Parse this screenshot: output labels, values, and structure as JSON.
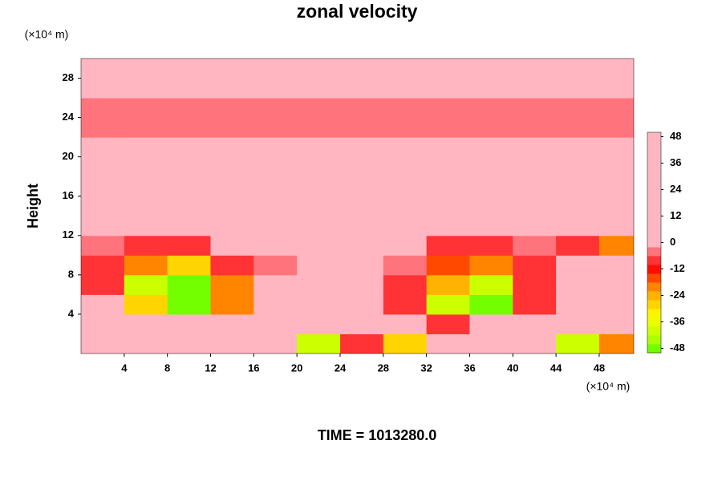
{
  "chart_data": {
    "type": "heatmap",
    "title": "zonal velocity",
    "subtitle": "TIME = 1013280.0",
    "y_label": "Height",
    "y_unit": "(×10⁴ m)",
    "x_unit": "(×10⁴ m)",
    "x": [
      2,
      6,
      10,
      14,
      18,
      22,
      26,
      30,
      34,
      38,
      42,
      46,
      50
    ],
    "y": [
      1,
      3,
      5,
      7,
      9,
      11,
      13,
      15,
      17,
      19,
      21,
      23,
      25,
      27,
      29
    ],
    "z": [
      [
        10,
        30,
        48,
        20,
        0,
        -40,
        -10,
        -30,
        20,
        48,
        10,
        -40,
        -20
      ],
      [
        20,
        30,
        30,
        10,
        0,
        15,
        10,
        0,
        -10,
        10,
        0,
        20,
        30
      ],
      [
        0,
        -30,
        -48,
        -20,
        0,
        10,
        0,
        -10,
        -40,
        -48,
        -10,
        48,
        48
      ],
      [
        -10,
        -40,
        -48,
        -20,
        0,
        0,
        0,
        -10,
        -24,
        -40,
        -10,
        48,
        40
      ],
      [
        -10,
        -20,
        -30,
        -10,
        -5,
        0,
        0,
        -5,
        -15,
        -20,
        -10,
        30,
        20
      ],
      [
        -5,
        -10,
        -10,
        0,
        0,
        0,
        0,
        0,
        -10,
        -10,
        -5,
        -10,
        -20
      ],
      [
        15,
        20,
        30,
        25,
        10,
        5,
        10,
        5,
        5,
        5,
        15,
        10,
        20
      ],
      [
        45,
        35,
        20,
        25,
        20,
        15,
        20,
        15,
        25,
        20,
        30,
        35,
        45
      ],
      [
        30,
        15,
        10,
        20,
        5,
        5,
        5,
        10,
        15,
        10,
        20,
        30,
        30
      ],
      [
        35,
        40,
        30,
        10,
        20,
        5,
        5,
        5,
        5,
        10,
        10,
        20,
        30
      ],
      [
        10,
        10,
        15,
        20,
        20,
        10,
        10,
        10,
        10,
        10,
        10,
        15,
        10
      ],
      [
        -5,
        -5,
        -5,
        -5,
        -5,
        -5,
        -5,
        -5,
        -5,
        -5,
        -5,
        -5,
        -5
      ],
      [
        -3,
        -3,
        -3,
        -3,
        -3,
        -3,
        -3,
        -3,
        -3,
        -3,
        -3,
        -3,
        -3
      ],
      [
        0,
        0,
        0,
        0,
        0,
        0,
        0,
        0,
        0,
        0,
        0,
        0,
        0
      ],
      [
        0,
        0,
        0,
        0,
        0,
        0,
        0,
        0,
        0,
        0,
        0,
        0,
        0
      ]
    ],
    "xlim": [
      0,
      51.2
    ],
    "ylim": [
      0,
      30
    ],
    "xticks": [
      4,
      8,
      12,
      16,
      20,
      24,
      28,
      32,
      36,
      40,
      44,
      48
    ],
    "yticks": [
      4,
      8,
      12,
      16,
      20,
      24,
      28
    ],
    "clim": [
      -50,
      50
    ],
    "clevel_step": 4,
    "cticks": [
      -48,
      -36,
      -24,
      -12,
      0,
      12,
      24,
      36,
      48
    ],
    "colormap": [
      "#8b008b",
      "#0000cd",
      "#00bfff",
      "#00e8d0",
      "#00ff00",
      "#aaff00",
      "#ffff00",
      "#ffa500",
      "#ff0000",
      "#ffb6c1"
    ]
  }
}
